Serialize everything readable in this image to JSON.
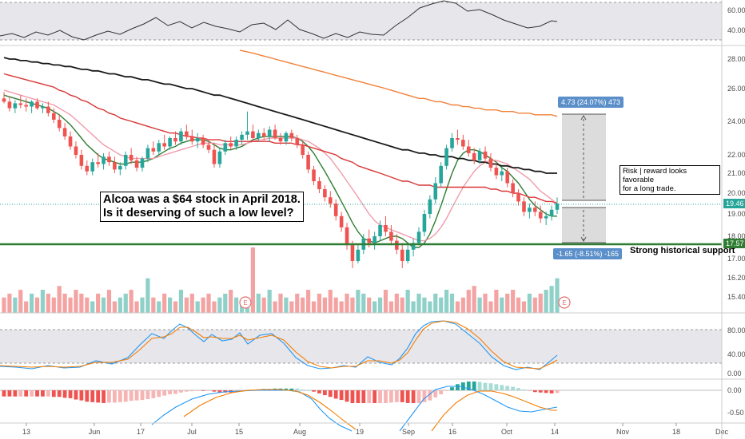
{
  "chart_data": {
    "type": "candlestick",
    "symbol_context": "Alcoa daily chart",
    "x_ticks": [
      "13",
      "Jun",
      "17",
      "Jul",
      "15",
      "Aug",
      "19",
      "Sep",
      "16",
      "Oct",
      "14",
      "Nov",
      "18",
      "Dec"
    ],
    "price_axis": {
      "ticks": [
        "28.00",
        "26.00",
        "24.00",
        "22.00",
        "21.00",
        "20.00",
        "19.00",
        "18.00",
        "17.00",
        "16.20",
        "15.40"
      ],
      "current_price": "19.46",
      "support_price": "17.57"
    },
    "candles": [
      [
        25.4,
        25.8,
        25.1,
        25.2
      ],
      [
        25.2,
        25.5,
        24.6,
        24.8
      ],
      [
        24.8,
        25.3,
        24.5,
        25.1
      ],
      [
        25.1,
        25.6,
        24.8,
        25.0
      ],
      [
        25.0,
        25.4,
        24.6,
        24.9
      ],
      [
        24.9,
        25.3,
        24.5,
        25.2
      ],
      [
        25.2,
        25.4,
        24.7,
        24.8
      ],
      [
        24.8,
        25.1,
        24.5,
        24.9
      ],
      [
        24.9,
        25.2,
        24.3,
        24.5
      ],
      [
        24.5,
        24.8,
        23.9,
        24.1
      ],
      [
        24.1,
        24.4,
        23.4,
        23.6
      ],
      [
        23.6,
        23.9,
        22.9,
        23.1
      ],
      [
        23.1,
        23.4,
        22.3,
        22.5
      ],
      [
        22.5,
        22.8,
        21.8,
        22.0
      ],
      [
        22.0,
        22.3,
        21.2,
        21.4
      ],
      [
        21.4,
        21.7,
        20.9,
        21.1
      ],
      [
        21.1,
        21.8,
        20.9,
        21.6
      ],
      [
        21.6,
        22.1,
        21.3,
        21.5
      ],
      [
        21.5,
        22.1,
        21.2,
        21.9
      ],
      [
        21.9,
        22.2,
        21.4,
        21.6
      ],
      [
        21.6,
        21.9,
        21.0,
        21.2
      ],
      [
        21.2,
        21.6,
        20.9,
        21.4
      ],
      [
        21.4,
        22.2,
        21.2,
        22.0
      ],
      [
        22.0,
        22.4,
        21.5,
        21.7
      ],
      [
        21.7,
        21.9,
        21.1,
        21.3
      ],
      [
        21.3,
        21.9,
        21.1,
        21.8
      ],
      [
        21.8,
        22.6,
        21.6,
        22.4
      ],
      [
        22.4,
        22.8,
        22.0,
        22.2
      ],
      [
        22.2,
        22.9,
        22.0,
        22.7
      ],
      [
        22.7,
        23.2,
        22.3,
        22.5
      ],
      [
        22.5,
        23.1,
        22.3,
        23.0
      ],
      [
        23.0,
        23.4,
        22.6,
        22.8
      ],
      [
        22.8,
        23.6,
        22.6,
        23.4
      ],
      [
        23.4,
        23.8,
        22.9,
        23.1
      ],
      [
        23.1,
        23.5,
        22.6,
        22.8
      ],
      [
        22.8,
        23.3,
        22.4,
        23.0
      ],
      [
        23.0,
        23.2,
        22.4,
        22.6
      ],
      [
        22.6,
        22.9,
        22.1,
        22.3
      ],
      [
        22.3,
        22.7,
        21.3,
        21.5
      ],
      [
        21.5,
        22.4,
        21.3,
        22.2
      ],
      [
        22.2,
        22.9,
        22.0,
        22.7
      ],
      [
        22.7,
        23.1,
        22.3,
        22.5
      ],
      [
        22.5,
        23.1,
        22.3,
        22.9
      ],
      [
        22.9,
        23.4,
        22.6,
        23.2
      ],
      [
        23.2,
        24.6,
        22.9,
        23.4
      ],
      [
        23.4,
        23.8,
        22.9,
        23.0
      ],
      [
        23.0,
        23.5,
        22.8,
        23.3
      ],
      [
        23.3,
        23.6,
        22.9,
        23.1
      ],
      [
        23.1,
        23.7,
        22.8,
        23.5
      ],
      [
        23.5,
        23.8,
        22.9,
        23.0
      ],
      [
        23.0,
        23.3,
        22.6,
        22.8
      ],
      [
        22.8,
        23.4,
        22.6,
        23.3
      ],
      [
        23.3,
        23.5,
        22.8,
        23.0
      ],
      [
        23.0,
        23.2,
        22.4,
        22.6
      ],
      [
        22.6,
        22.8,
        21.8,
        22.0
      ],
      [
        22.0,
        22.2,
        21.0,
        21.2
      ],
      [
        21.2,
        21.4,
        20.4,
        20.6
      ],
      [
        20.6,
        20.8,
        20.0,
        20.2
      ],
      [
        20.2,
        20.4,
        19.6,
        19.8
      ],
      [
        19.8,
        20.1,
        19.3,
        19.5
      ],
      [
        19.5,
        19.7,
        18.7,
        18.9
      ],
      [
        18.9,
        19.1,
        18.2,
        18.4
      ],
      [
        18.4,
        18.6,
        17.4,
        17.6
      ],
      [
        17.6,
        17.8,
        16.6,
        16.9
      ],
      [
        16.9,
        17.6,
        16.8,
        17.4
      ],
      [
        17.4,
        18.1,
        17.2,
        17.9
      ],
      [
        17.9,
        18.3,
        17.5,
        17.7
      ],
      [
        17.7,
        18.2,
        17.4,
        18.0
      ],
      [
        18.0,
        18.7,
        17.8,
        18.5
      ],
      [
        18.5,
        18.9,
        18.0,
        18.2
      ],
      [
        18.2,
        18.5,
        17.6,
        17.8
      ],
      [
        17.8,
        18.1,
        17.2,
        17.4
      ],
      [
        17.4,
        17.7,
        16.6,
        16.9
      ],
      [
        16.9,
        17.6,
        16.8,
        17.4
      ],
      [
        17.4,
        17.9,
        17.1,
        17.7
      ],
      [
        17.7,
        18.4,
        17.6,
        18.2
      ],
      [
        18.2,
        19.2,
        18.0,
        19.0
      ],
      [
        19.0,
        19.9,
        18.8,
        19.7
      ],
      [
        19.7,
        20.8,
        19.5,
        20.5
      ],
      [
        20.5,
        21.6,
        20.3,
        21.4
      ],
      [
        21.4,
        22.6,
        21.2,
        22.4
      ],
      [
        22.4,
        23.3,
        22.2,
        23.0
      ],
      [
        23.0,
        23.5,
        22.6,
        22.9
      ],
      [
        22.9,
        23.2,
        22.3,
        22.5
      ],
      [
        22.5,
        22.9,
        21.9,
        22.1
      ],
      [
        22.1,
        22.4,
        21.5,
        21.7
      ],
      [
        21.7,
        22.4,
        21.5,
        22.2
      ],
      [
        22.2,
        22.5,
        21.6,
        21.8
      ],
      [
        21.8,
        22.1,
        21.1,
        21.3
      ],
      [
        21.3,
        21.6,
        20.7,
        20.9
      ],
      [
        20.9,
        21.3,
        20.6,
        21.1
      ],
      [
        21.1,
        21.3,
        20.3,
        20.5
      ],
      [
        20.5,
        20.7,
        19.8,
        20.0
      ],
      [
        20.0,
        20.2,
        19.4,
        19.6
      ],
      [
        19.6,
        19.8,
        18.9,
        19.1
      ],
      [
        19.1,
        19.5,
        18.8,
        19.3
      ],
      [
        19.3,
        19.6,
        18.9,
        19.1
      ],
      [
        19.1,
        19.4,
        18.6,
        18.8
      ],
      [
        18.8,
        19.1,
        18.5,
        18.9
      ],
      [
        18.9,
        19.4,
        18.7,
        19.2
      ],
      [
        19.2,
        19.8,
        19.0,
        19.5
      ]
    ],
    "moving_averages": [
      {
        "color": "#2e7d32",
        "values": [
          25.6,
          25.5,
          25.4,
          25.3,
          25.2,
          25.1,
          25.0,
          24.9,
          24.8,
          24.6,
          24.4,
          24.1,
          23.8,
          23.4,
          23.0,
          22.6,
          22.3,
          22.0,
          21.8,
          21.7,
          21.6,
          21.5,
          21.5,
          21.6,
          21.6,
          21.6,
          21.7,
          21.8,
          22.0,
          22.2,
          22.4,
          22.5,
          22.7,
          22.8,
          22.9,
          22.9,
          22.9,
          22.8,
          22.6,
          22.4,
          22.3,
          22.3,
          22.4,
          22.5,
          22.7,
          22.9,
          23.0,
          23.1,
          23.1,
          23.1,
          23.1,
          23.1,
          23.1,
          23.0,
          22.8,
          22.5,
          22.1,
          21.6,
          21.1,
          20.6,
          20.1,
          19.6,
          19.1,
          18.6,
          18.2,
          17.9,
          17.8,
          17.7,
          17.8,
          17.9,
          18.0,
          18.0,
          17.9,
          17.7,
          17.5,
          17.5,
          17.7,
          18.1,
          18.7,
          19.4,
          20.2,
          21.0,
          21.7,
          22.1,
          22.3,
          22.3,
          22.2,
          22.0,
          21.8,
          21.6,
          21.3,
          21.1,
          20.8,
          20.5,
          20.1,
          19.7,
          19.4,
          19.2,
          19.0,
          18.9,
          18.9
        ]
      },
      {
        "color": "#f09cab",
        "values": [
          25.9,
          25.8,
          25.7,
          25.6,
          25.5,
          25.4,
          25.3,
          25.2,
          25.1,
          25.0,
          24.8,
          24.6,
          24.4,
          24.1,
          23.8,
          23.5,
          23.2,
          22.9,
          22.6,
          22.4,
          22.2,
          22.0,
          21.9,
          21.8,
          21.8,
          21.8,
          21.8,
          21.8,
          21.9,
          22.0,
          22.1,
          22.2,
          22.3,
          22.4,
          22.5,
          22.6,
          22.7,
          22.7,
          22.7,
          22.6,
          22.6,
          22.6,
          22.6,
          22.6,
          22.7,
          22.8,
          22.9,
          22.9,
          23.0,
          23.0,
          23.0,
          23.0,
          23.0,
          23.0,
          22.9,
          22.8,
          22.6,
          22.4,
          22.1,
          21.8,
          21.4,
          21.0,
          20.6,
          20.2,
          19.8,
          19.4,
          19.0,
          18.7,
          18.5,
          18.4,
          18.3,
          18.2,
          18.1,
          18.0,
          17.9,
          17.8,
          17.8,
          17.9,
          18.1,
          18.4,
          18.8,
          19.3,
          19.8,
          20.3,
          20.7,
          21.1,
          21.4,
          21.6,
          21.7,
          21.7,
          21.6,
          21.5,
          21.3,
          21.1,
          20.9,
          20.7,
          20.4,
          20.1,
          19.9,
          19.7,
          19.5
        ]
      },
      {
        "color": "#d93636",
        "values": [
          27.0,
          26.9,
          26.8,
          26.7,
          26.6,
          26.5,
          26.4,
          26.3,
          26.2,
          26.1,
          25.9,
          25.8,
          25.6,
          25.5,
          25.3,
          25.2,
          25.0,
          24.8,
          24.7,
          24.5,
          24.4,
          24.2,
          24.1,
          24.0,
          23.9,
          23.8,
          23.7,
          23.6,
          23.5,
          23.4,
          23.3,
          23.3,
          23.2,
          23.1,
          23.1,
          23.0,
          23.0,
          22.9,
          22.9,
          22.9,
          22.8,
          22.8,
          22.8,
          22.8,
          22.8,
          22.8,
          22.8,
          22.8,
          22.8,
          22.7,
          22.7,
          22.7,
          22.7,
          22.6,
          22.6,
          22.5,
          22.4,
          22.3,
          22.2,
          22.1,
          22.0,
          21.8,
          21.7,
          21.6,
          21.4,
          21.3,
          21.2,
          21.1,
          21.0,
          20.9,
          20.8,
          20.7,
          20.6,
          20.6,
          20.5,
          20.4,
          20.4,
          20.4,
          20.3,
          20.3,
          20.3,
          20.3,
          20.3,
          20.3,
          20.3,
          20.3,
          20.3,
          20.3,
          20.2,
          20.2,
          20.1,
          20.1,
          20.0,
          20.0,
          19.9,
          19.8,
          19.8,
          19.7,
          19.6,
          19.6,
          19.5
        ]
      },
      {
        "color": "#1a1a1a",
        "values": [
          28.1,
          28.0,
          28.0,
          27.9,
          27.9,
          27.8,
          27.8,
          27.7,
          27.7,
          27.6,
          27.6,
          27.5,
          27.5,
          27.4,
          27.3,
          27.3,
          27.2,
          27.2,
          27.1,
          27.0,
          27.0,
          26.9,
          26.8,
          26.8,
          26.7,
          26.6,
          26.6,
          26.5,
          26.4,
          26.3,
          26.3,
          26.2,
          26.1,
          26.0,
          26.0,
          25.9,
          25.8,
          25.7,
          25.6,
          25.6,
          25.5,
          25.4,
          25.3,
          25.2,
          25.1,
          25.0,
          24.9,
          24.8,
          24.7,
          24.6,
          24.5,
          24.4,
          24.3,
          24.2,
          24.1,
          24.0,
          23.9,
          23.8,
          23.7,
          23.6,
          23.5,
          23.4,
          23.3,
          23.2,
          23.1,
          23.0,
          22.9,
          22.8,
          22.7,
          22.6,
          22.5,
          22.4,
          22.3,
          22.3,
          22.2,
          22.1,
          22.1,
          22.0,
          22.0,
          21.9,
          21.9,
          21.9,
          21.8,
          21.8,
          21.7,
          21.7,
          21.6,
          21.6,
          21.5,
          21.5,
          21.4,
          21.4,
          21.3,
          21.3,
          21.2,
          21.2,
          21.1,
          21.1,
          21.0,
          21.0,
          21.0
        ]
      },
      {
        "color": "#f2813a",
        "values": [
          null,
          null,
          null,
          null,
          null,
          null,
          null,
          null,
          null,
          null,
          null,
          null,
          null,
          null,
          null,
          null,
          null,
          null,
          null,
          null,
          null,
          null,
          null,
          null,
          null,
          null,
          null,
          null,
          null,
          null,
          null,
          null,
          null,
          null,
          null,
          null,
          null,
          null,
          null,
          null,
          null,
          null,
          null,
          null,
          null,
          28.4,
          28.3,
          28.2,
          28.1,
          28.0,
          27.9,
          27.8,
          27.7,
          27.6,
          27.5,
          27.4,
          27.3,
          27.2,
          27.1,
          27.0,
          26.9,
          26.8,
          26.7,
          26.6,
          26.5,
          26.4,
          26.3,
          26.2,
          26.1,
          26.0,
          25.9,
          25.8,
          25.7,
          25.6,
          25.5,
          25.4,
          25.4,
          25.3,
          25.2,
          25.2,
          25.1,
          25.0,
          25.0,
          24.9,
          24.9,
          24.8,
          24.8,
          24.7,
          24.7,
          24.7,
          24.6,
          24.6,
          24.6,
          24.5,
          24.5,
          24.5,
          24.4,
          24.4,
          24.4,
          24.4,
          24.3
        ]
      }
    ],
    "volume": [
      4,
      5,
      4,
      6,
      3,
      5,
      4,
      6,
      5,
      4,
      7,
      5,
      4,
      6,
      5,
      4,
      3,
      5,
      4,
      6,
      3,
      4,
      5,
      6,
      3,
      4,
      9,
      4,
      3,
      5,
      4,
      3,
      6,
      4,
      5,
      3,
      4,
      5,
      3,
      4,
      5,
      6,
      4,
      3,
      4,
      17,
      5,
      4,
      6,
      3,
      5,
      4,
      3,
      5,
      4,
      6,
      3,
      5,
      4,
      6,
      4,
      3,
      5,
      4,
      6,
      5,
      4,
      3,
      4,
      6,
      3,
      5,
      4,
      6,
      3,
      5,
      4,
      3,
      5,
      4,
      6,
      5,
      3,
      4,
      6,
      7,
      4,
      5,
      3,
      6,
      4,
      5,
      6,
      4,
      3,
      5,
      4,
      5,
      6,
      7,
      9
    ],
    "oscillator_top": {
      "axis_ticks": [
        "60.00",
        "40.00"
      ]
    },
    "stochastic": {
      "axis_ticks": [
        "80.00",
        "40.00",
        "0.00"
      ]
    },
    "macd": {
      "axis_ticks": [
        "0.00",
        "-0.50"
      ]
    },
    "annotations": {
      "main_note_line1": "Alcoa was a $64 stock in April 2018.",
      "main_note_line2": "Is it deserving of such a low level?",
      "risk_note_line1": "Risk | reward looks favorable",
      "risk_note_line2": "for a long trade.",
      "support_label": "Strong historical support",
      "target_label": "4.73 (24.07%) 473",
      "stop_label": "-1.65 (-8.51%) -165",
      "earnings_marker": "E"
    }
  }
}
